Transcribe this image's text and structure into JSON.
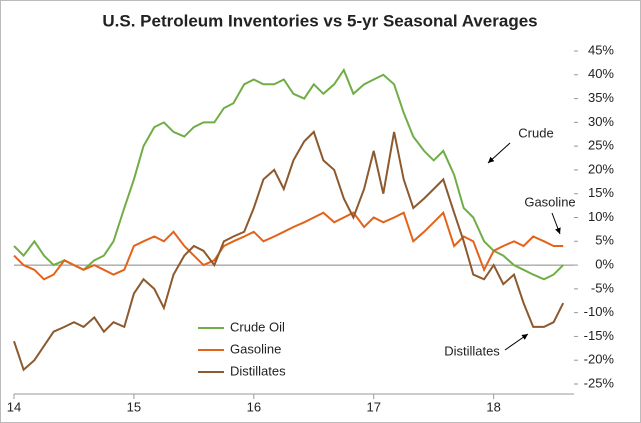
{
  "chart_data": {
    "type": "line",
    "title": "U.S. Petroleum Inventories vs 5-yr Seasonal Averages",
    "x": [
      14.0,
      14.08,
      14.17,
      14.25,
      14.33,
      14.42,
      14.5,
      14.58,
      14.67,
      14.75,
      14.83,
      14.92,
      15.0,
      15.08,
      15.17,
      15.25,
      15.33,
      15.42,
      15.5,
      15.58,
      15.67,
      15.75,
      15.83,
      15.92,
      16.0,
      16.08,
      16.17,
      16.25,
      16.33,
      16.42,
      16.5,
      16.58,
      16.67,
      16.75,
      16.83,
      16.92,
      17.0,
      17.08,
      17.17,
      17.25,
      17.33,
      17.42,
      17.5,
      17.58,
      17.67,
      17.75,
      17.83,
      17.92,
      18.0,
      18.08,
      18.17,
      18.25,
      18.33,
      18.42,
      18.5,
      18.58
    ],
    "series": [
      {
        "name": "Crude Oil",
        "color": "#70ad47",
        "values": [
          4,
          2,
          5,
          2,
          0,
          1,
          0,
          -1,
          1,
          2,
          5,
          12,
          18,
          25,
          29,
          30,
          28,
          27,
          29,
          30,
          30,
          33,
          34,
          38,
          39,
          38,
          38,
          39,
          36,
          35,
          38,
          36,
          38,
          41,
          36,
          38,
          39,
          40,
          38,
          32,
          27,
          24,
          22,
          24,
          19,
          12,
          10,
          5,
          3,
          2,
          0,
          -1,
          -2,
          -3,
          -2,
          0
        ]
      },
      {
        "name": "Gasoline",
        "color": "#e4621a",
        "values": [
          2,
          0,
          -1,
          -3,
          -2,
          1,
          0,
          -1,
          0,
          -1,
          -2,
          -1,
          4,
          5,
          6,
          5,
          7,
          4,
          2,
          0,
          1,
          4,
          5,
          6,
          7,
          5,
          6,
          7,
          8,
          9,
          10,
          11,
          9,
          10,
          11,
          8,
          10,
          9,
          10,
          11,
          5,
          7,
          9,
          11,
          4,
          6,
          5,
          -1,
          3,
          4,
          5,
          4,
          6,
          5,
          4,
          4
        ]
      },
      {
        "name": "Distillates",
        "color": "#8c5a2e",
        "values": [
          -16,
          -22,
          -20,
          -17,
          -14,
          -13,
          -12,
          -13,
          -11,
          -14,
          -12,
          -13,
          -6,
          -3,
          -5,
          -9,
          -2,
          2,
          4,
          3,
          0,
          5,
          6,
          7,
          12,
          18,
          20,
          16,
          22,
          26,
          28,
          22,
          20,
          14,
          10,
          16,
          24,
          15,
          28,
          18,
          12,
          14,
          16,
          18,
          11,
          5,
          -2,
          -3,
          0,
          -4,
          -2,
          -8,
          -13,
          -13,
          -12,
          -8
        ]
      }
    ],
    "xlim": [
      14,
      18.67
    ],
    "xticks": [
      14,
      15,
      16,
      17,
      18
    ],
    "ylim": [
      -25,
      45
    ],
    "yticks": [
      {
        "value": 45,
        "label": "45%"
      },
      {
        "value": 40,
        "label": "40%"
      },
      {
        "value": 35,
        "label": "35%"
      },
      {
        "value": 30,
        "label": "30%"
      },
      {
        "value": 25,
        "label": "25%"
      },
      {
        "value": 20,
        "label": "20%"
      },
      {
        "value": 15,
        "label": "15%"
      },
      {
        "value": 10,
        "label": "10%"
      },
      {
        "value": 5,
        "label": "5%"
      },
      {
        "value": 0,
        "label": "0%"
      },
      {
        "value": -5,
        "label": "-5%"
      },
      {
        "value": -10,
        "label": "-10%"
      },
      {
        "value": -15,
        "label": "-15%"
      },
      {
        "value": -20,
        "label": "-20%"
      },
      {
        "value": -25,
        "label": "-25%"
      }
    ],
    "annotations": [
      "Crude",
      "Gasoline",
      "Distillates"
    ]
  }
}
